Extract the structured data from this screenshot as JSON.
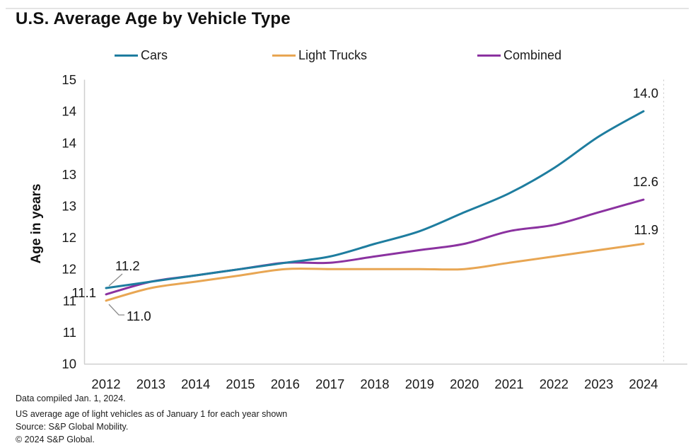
{
  "chart_data": {
    "type": "line",
    "title": "U.S. Average Age by Vehicle Type",
    "x": [
      2012,
      2013,
      2014,
      2015,
      2016,
      2017,
      2018,
      2019,
      2020,
      2021,
      2022,
      2023,
      2024
    ],
    "series": [
      {
        "name": "Cars",
        "color": "#1e7d9f",
        "values": [
          11.2,
          11.3,
          11.4,
          11.5,
          11.6,
          11.7,
          11.9,
          12.1,
          12.4,
          12.7,
          13.1,
          13.6,
          14.0
        ]
      },
      {
        "name": "Light Trucks",
        "color": "#e8a653",
        "values": [
          11.0,
          11.2,
          11.3,
          11.4,
          11.5,
          11.5,
          11.5,
          11.5,
          11.5,
          11.6,
          11.7,
          11.8,
          11.9
        ]
      },
      {
        "name": "Combined",
        "color": "#8b32a0",
        "values": [
          11.1,
          11.3,
          11.4,
          11.5,
          11.6,
          11.6,
          11.7,
          11.8,
          11.9,
          12.1,
          12.2,
          12.4,
          12.6
        ]
      }
    ],
    "xlabel": "",
    "ylabel": "Age in years",
    "y_axis": {
      "min": 10,
      "max": 14.5,
      "tick_step": 0.5,
      "tick_labels_displayed": [
        "10",
        "11",
        "11",
        "12",
        "12",
        "13",
        "13",
        "14",
        "14",
        "15"
      ]
    },
    "grid": false,
    "legend_position": "top",
    "annotations": [
      {
        "series": "Cars",
        "point": "start",
        "text": "11.2"
      },
      {
        "series": "Combined",
        "point": "start",
        "text": "11.1"
      },
      {
        "series": "Light Trucks",
        "point": "start",
        "text": "11.0"
      },
      {
        "series": "Cars",
        "point": "end",
        "text": "14.0"
      },
      {
        "series": "Combined",
        "point": "end",
        "text": "12.6"
      },
      {
        "series": "Light Trucks",
        "point": "end",
        "text": "11.9"
      }
    ]
  },
  "footnotes": {
    "lines": [
      "Data compiled Jan. 1, 2024.",
      "US average age of light vehicles as of January 1 for each year shown",
      "Source: S&P Global Mobility.",
      "© 2024 S&P Global."
    ]
  }
}
